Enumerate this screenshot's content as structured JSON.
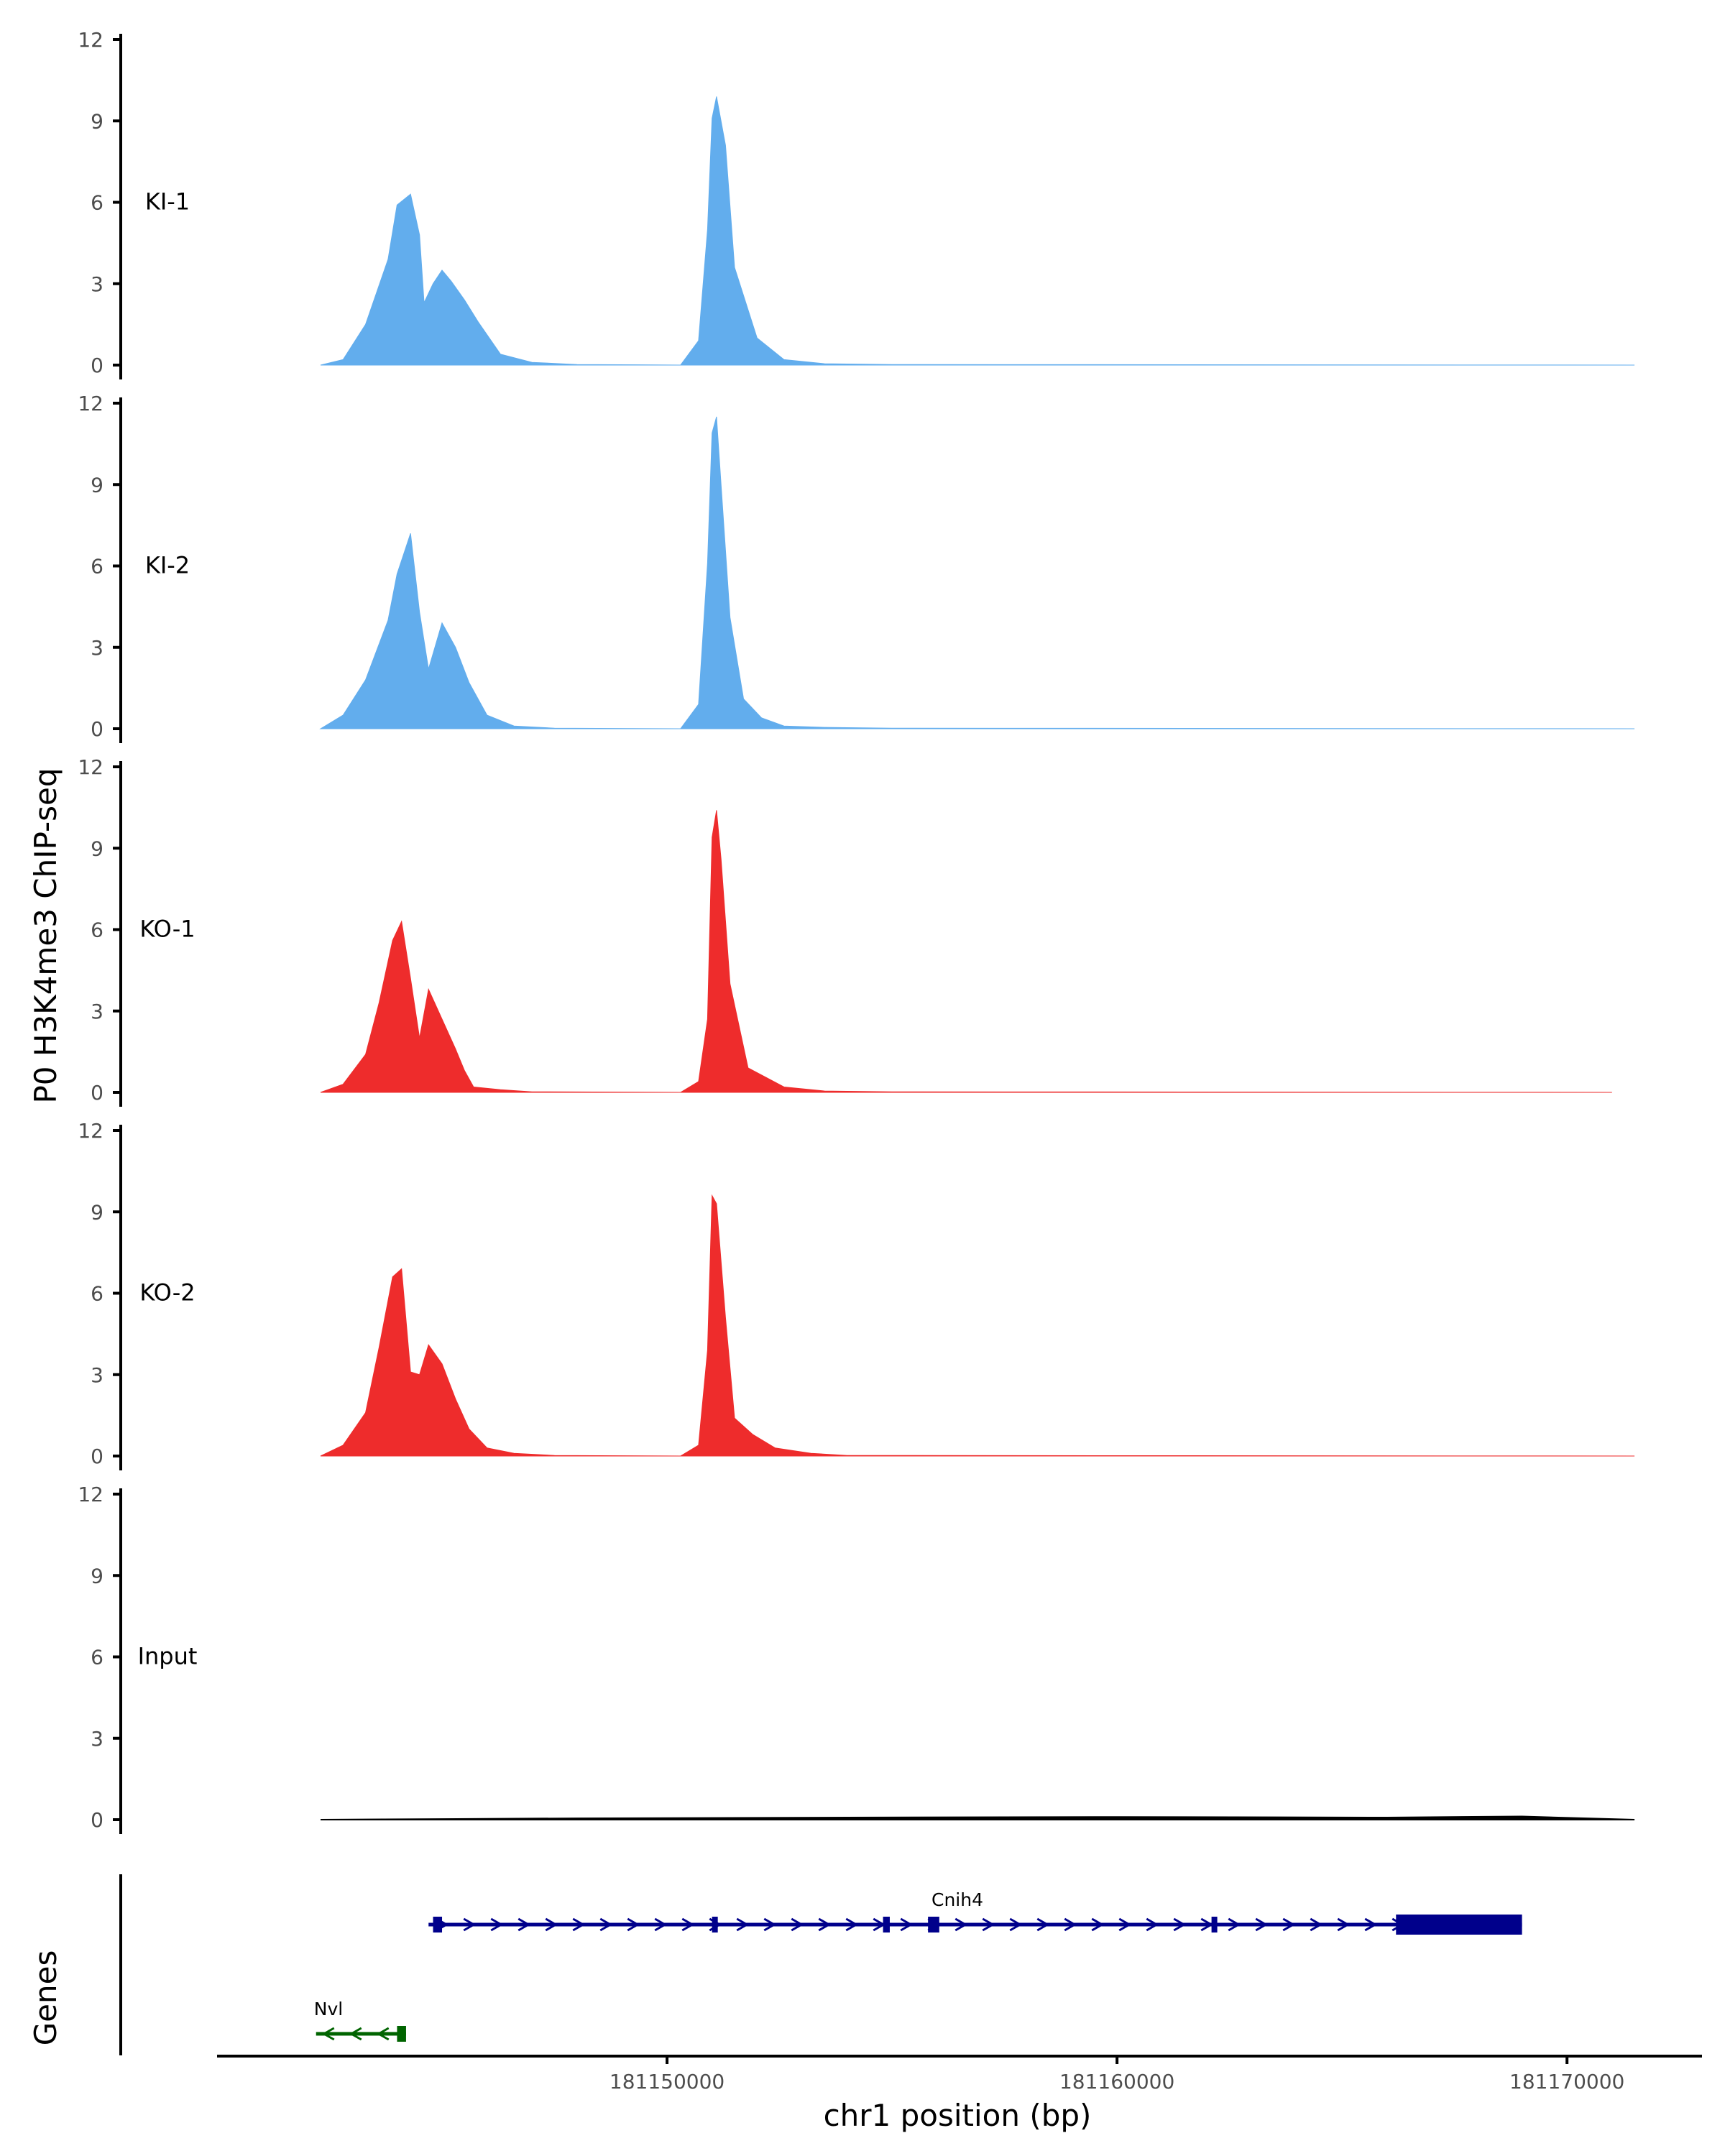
{
  "chart_data": {
    "type": "area",
    "title": "",
    "ylabel": "P0 H3K4me3 ChIP-seq",
    "xlabel": "chr1 position (bp)",
    "gene_panel_label": "Genes",
    "ylim": [
      0,
      12
    ],
    "yticks": [
      0,
      3,
      6,
      9,
      12
    ],
    "xlim": [
      181140000,
      181173000
    ],
    "xticks": [
      181150000,
      181160000,
      181170000
    ],
    "xtick_labels": [
      "181150000",
      "181160000",
      "181170000"
    ],
    "grid": false,
    "colors": {
      "KI": "#62ADED",
      "KO": "#EE2C2C",
      "Input": "#000000",
      "gene_plus": "#00008B",
      "gene_minus": "#006400"
    },
    "series": [
      {
        "name": "KI-1",
        "color": "#62ADED",
        "x": [
          181142300,
          181142800,
          181143300,
          181143800,
          181144000,
          181144300,
          181144500,
          181144600,
          181144800,
          181145000,
          181145200,
          181145500,
          181145800,
          181146300,
          181147000,
          181148000,
          181150300,
          181150700,
          181150900,
          181151000,
          181151100,
          181151300,
          181151500,
          181152000,
          181152600,
          181153500,
          181155000,
          181171500
        ],
        "y": [
          0,
          0.2,
          1.5,
          3.9,
          5.9,
          6.3,
          4.8,
          2.3,
          3.0,
          3.5,
          3.1,
          2.4,
          1.6,
          0.4,
          0.1,
          0.02,
          0,
          0.9,
          5.0,
          9.1,
          9.9,
          8.1,
          3.6,
          1.0,
          0.2,
          0.05,
          0.02,
          0
        ]
      },
      {
        "name": "KI-2",
        "color": "#62ADED",
        "x": [
          181142300,
          181142800,
          181143300,
          181143800,
          181144000,
          181144300,
          181144500,
          181144700,
          181145000,
          181145300,
          181145600,
          181146000,
          181146600,
          181147500,
          181150300,
          181150700,
          181150900,
          181151000,
          181151100,
          181151200,
          181151400,
          181151700,
          181152100,
          181152600,
          181153500,
          181155000,
          181171500
        ],
        "y": [
          0,
          0.5,
          1.8,
          4.0,
          5.7,
          7.2,
          4.3,
          2.2,
          3.9,
          3.0,
          1.7,
          0.5,
          0.1,
          0.02,
          0,
          0.9,
          6.1,
          10.9,
          11.5,
          9.0,
          4.1,
          1.1,
          0.4,
          0.1,
          0.05,
          0.02,
          0
        ]
      },
      {
        "name": "KO-1",
        "color": "#EE2C2C",
        "x": [
          181142300,
          181142800,
          181143300,
          181143600,
          181143900,
          181144100,
          181144300,
          181144500,
          181144700,
          181145000,
          181145300,
          181145500,
          181145700,
          181146300,
          181147000,
          181150300,
          181150700,
          181150900,
          181151000,
          181151100,
          181151200,
          181151400,
          181151800,
          181152600,
          181153500,
          181155000,
          181171000
        ],
        "y": [
          0,
          0.3,
          1.4,
          3.3,
          5.6,
          6.3,
          4.2,
          2.0,
          3.8,
          2.7,
          1.6,
          0.8,
          0.2,
          0.1,
          0.02,
          0,
          0.4,
          2.7,
          9.4,
          10.4,
          8.6,
          4.0,
          0.9,
          0.2,
          0.05,
          0.02,
          0
        ]
      },
      {
        "name": "KO-2",
        "color": "#EE2C2C",
        "x": [
          181142300,
          181142800,
          181143300,
          181143600,
          181143900,
          181144100,
          181144300,
          181144500,
          181144700,
          181145000,
          181145300,
          181145600,
          181146000,
          181146600,
          181147500,
          181150300,
          181150700,
          181150900,
          181151000,
          181151100,
          181151300,
          181151500,
          181151900,
          181152400,
          181153200,
          181154000,
          181171500
        ],
        "y": [
          0,
          0.4,
          1.6,
          4.0,
          6.6,
          6.9,
          3.1,
          3.0,
          4.1,
          3.4,
          2.1,
          1.0,
          0.3,
          0.1,
          0.02,
          0,
          0.4,
          3.9,
          9.6,
          9.3,
          5.1,
          1.4,
          0.8,
          0.3,
          0.1,
          0.02,
          0
        ]
      },
      {
        "name": "Input",
        "color": "#000000",
        "x": [
          181142300,
          181148000,
          181154000,
          181160000,
          181166000,
          181169000,
          181171500
        ],
        "y": [
          0,
          0.05,
          0.08,
          0.1,
          0.08,
          0.12,
          0
        ]
      }
    ],
    "genes": [
      {
        "name": "Cnih4",
        "strand": "+",
        "color": "#00008B",
        "start": 181144700,
        "end": 181169000,
        "exons": [
          [
            181144800,
            181145000
          ],
          [
            181151000,
            181151100
          ],
          [
            181154800,
            181154950
          ],
          [
            181155800,
            181156050
          ],
          [
            181162100,
            181162200
          ],
          [
            181166200,
            181169000
          ]
        ]
      },
      {
        "name": "Nvl",
        "strand": "-",
        "color": "#006400",
        "start": 181142200,
        "end": 181144200,
        "exons": [
          [
            181144000,
            181144200
          ]
        ]
      }
    ]
  }
}
